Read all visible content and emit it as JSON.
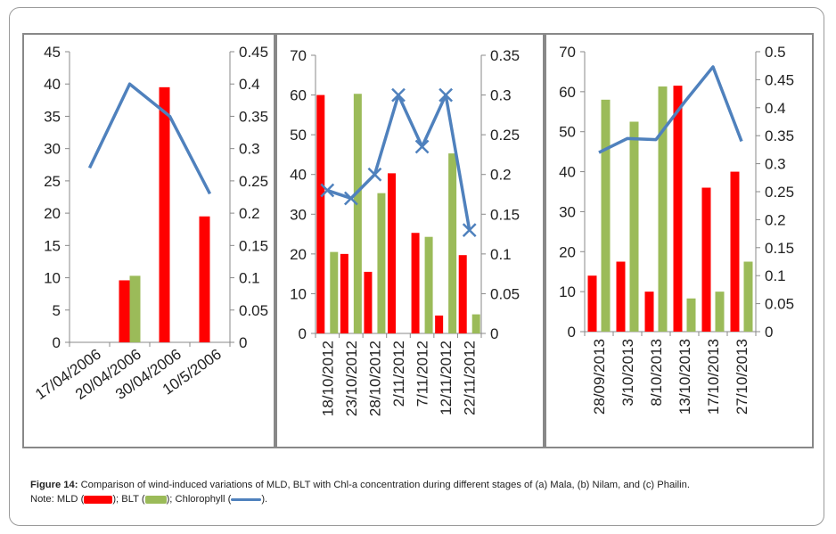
{
  "colors": {
    "mld": "#ff0000",
    "blt": "#9bbb59",
    "chl": "#4f81bd",
    "axis": "#888888"
  },
  "chart_data": [
    {
      "type": "bar",
      "categories": [
        "17/04/2006",
        "20/04/2006",
        "30/04/2006",
        "10/5/2006"
      ],
      "left_axis": {
        "min": 0,
        "max": 45,
        "ticks": [
          0,
          5,
          10,
          15,
          20,
          25,
          30,
          35,
          40,
          45
        ]
      },
      "right_axis": {
        "min": 0,
        "max": 0.45,
        "ticks": [
          "0",
          "0.05",
          "0.1",
          "0.15",
          "0.2",
          "0.25",
          "0.3",
          "0.35",
          "0.4",
          "0.45"
        ]
      },
      "series": [
        {
          "name": "MLD",
          "kind": "bar",
          "axis": "left",
          "values": [
            null,
            9.6,
            39.5,
            19.5
          ]
        },
        {
          "name": "BLT",
          "kind": "bar",
          "axis": "left",
          "values": [
            null,
            10.3,
            null,
            null
          ]
        },
        {
          "name": "Chlorophyll",
          "kind": "line",
          "axis": "right",
          "marker": "none",
          "values": [
            0.27,
            0.4,
            0.35,
            0.23
          ]
        }
      ],
      "label_rotation": -35
    },
    {
      "type": "bar",
      "categories": [
        "18/10/2012",
        "23/10/2012",
        "28/10/2012",
        "2/11/2012",
        "7/11/2012",
        "12/11/2012",
        "22/11/2012"
      ],
      "left_axis": {
        "min": 0,
        "max": 70,
        "ticks": [
          0,
          10,
          20,
          30,
          40,
          50,
          60,
          70
        ]
      },
      "right_axis": {
        "min": 0,
        "max": 0.35,
        "ticks": [
          "0",
          "0.05",
          "0.1",
          "0.15",
          "0.2",
          "0.25",
          "0.3",
          "0.35"
        ]
      },
      "series": [
        {
          "name": "MLD",
          "kind": "bar",
          "axis": "left",
          "values": [
            60,
            20,
            15.5,
            40.3,
            25.3,
            4.5,
            19.7
          ]
        },
        {
          "name": "BLT",
          "kind": "bar",
          "axis": "left",
          "values": [
            20.5,
            60.3,
            35.3,
            null,
            24.3,
            45.3,
            4.8
          ]
        },
        {
          "name": "Chlorophyll",
          "kind": "line",
          "axis": "right",
          "marker": "x",
          "values": [
            0.18,
            0.17,
            0.2,
            0.3,
            0.235,
            0.3,
            0.13
          ]
        }
      ],
      "label_rotation": -90
    },
    {
      "type": "bar",
      "categories": [
        "28/09/2013",
        "3/10/2013",
        "8/10/2013",
        "13/10/2013",
        "17/10/2013",
        "27/10/2013"
      ],
      "left_axis": {
        "min": 0,
        "max": 70,
        "ticks": [
          0,
          10,
          20,
          30,
          40,
          50,
          60,
          70
        ]
      },
      "right_axis": {
        "min": 0,
        "max": 0.5,
        "ticks": [
          "0",
          "0.05",
          "0.1",
          "0.15",
          "0.2",
          "0.25",
          "0.3",
          "0.35",
          "0.4",
          "0.45",
          "0.5"
        ]
      },
      "series": [
        {
          "name": "MLD",
          "kind": "bar",
          "axis": "left",
          "values": [
            14,
            17.5,
            10,
            61.5,
            36,
            40
          ]
        },
        {
          "name": "BLT",
          "kind": "bar",
          "axis": "left",
          "values": [
            58,
            52.5,
            61.3,
            8.3,
            10,
            17.5
          ]
        },
        {
          "name": "Chlorophyll",
          "kind": "line",
          "axis": "right",
          "marker": "none",
          "values": [
            0.32,
            0.345,
            0.343,
            0.41,
            0.473,
            0.34
          ]
        }
      ],
      "label_rotation": -90
    }
  ],
  "caption": {
    "figure_label": "Figure 14:",
    "text": " Comparison of wind-induced variations of MLD, BLT with Chl-a concentration during different stages of (a) Mala, (b) Nilam, and (c) Phailin.",
    "note_prefix": "Note: MLD (",
    "note_blt": "); BLT (",
    "note_chl": "); Chlorophyll (",
    "note_end": ")."
  }
}
